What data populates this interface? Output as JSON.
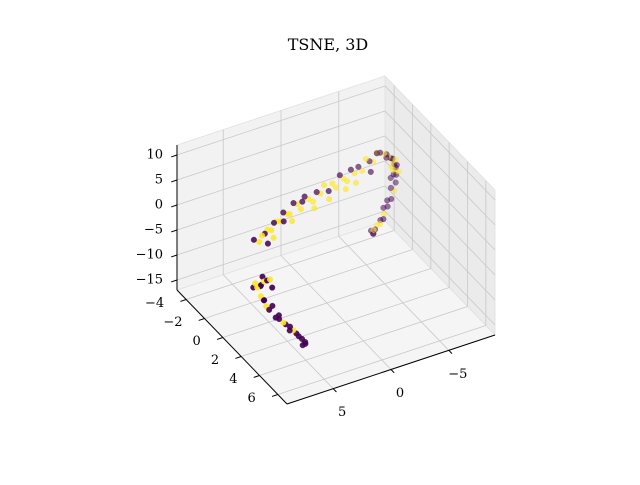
{
  "chart_data": {
    "type": "scatter",
    "projection": "3d",
    "title": "TSNE, 3D",
    "xlabel": "",
    "ylabel": "",
    "zlabel": "",
    "x_ticks": [
      5,
      0,
      -5
    ],
    "y_ticks": [
      -4,
      -2,
      0,
      2,
      4,
      6
    ],
    "z_ticks": [
      10,
      5,
      0,
      -5,
      -10,
      -15
    ],
    "x_tick_labels": [
      "5",
      "0",
      "−5"
    ],
    "y_tick_labels": [
      "−4",
      "−2",
      "0",
      "2",
      "4",
      "6"
    ],
    "z_tick_labels": [
      "10",
      "5",
      "0",
      "−5",
      "−10",
      "−15"
    ],
    "xlim": [
      -9,
      9
    ],
    "ylim": [
      -5,
      7
    ],
    "zlim": [
      -17,
      12
    ],
    "grid": true,
    "colormap": "viridis",
    "classes": [
      {
        "label": 0,
        "color": "#440154"
      },
      {
        "label": 1,
        "color": "#fde725"
      }
    ],
    "points": [
      {
        "x": 8.6,
        "y": 4.0,
        "z": 1.5,
        "c": 1
      },
      {
        "x": 8.7,
        "y": 3.8,
        "z": 0.5,
        "c": 0
      },
      {
        "x": 8.8,
        "y": 3.5,
        "z": -0.5,
        "c": 1
      },
      {
        "x": 8.9,
        "y": 3.2,
        "z": -1.0,
        "c": 0
      },
      {
        "x": 8.5,
        "y": 4.2,
        "z": 2.0,
        "c": 0
      },
      {
        "x": 8.4,
        "y": 4.4,
        "z": 2.5,
        "c": 1
      },
      {
        "x": 8.7,
        "y": 4.1,
        "z": -2.0,
        "c": 0
      },
      {
        "x": 8.8,
        "y": 3.9,
        "z": -1.5,
        "c": 1
      },
      {
        "x": 8.6,
        "y": 3.6,
        "z": -0.2,
        "c": 0
      },
      {
        "x": 8.3,
        "y": 4.5,
        "z": 1.0,
        "c": 0
      },
      {
        "x": 8.9,
        "y": 3.4,
        "z": 0.2,
        "c": 1
      },
      {
        "x": 8.5,
        "y": 3.7,
        "z": 1.8,
        "c": 0
      },
      {
        "x": 8.2,
        "y": 3.5,
        "z": -3.5,
        "c": 0
      },
      {
        "x": 8.0,
        "y": 3.8,
        "z": -5.0,
        "c": 0
      },
      {
        "x": 7.6,
        "y": 4.0,
        "z": -6.5,
        "c": 0
      },
      {
        "x": 7.1,
        "y": 4.2,
        "z": -7.5,
        "c": 1
      },
      {
        "x": 6.6,
        "y": 4.3,
        "z": -8.5,
        "c": 0
      },
      {
        "x": 6.2,
        "y": 4.5,
        "z": -9.8,
        "c": 0
      },
      {
        "x": 5.8,
        "y": 4.6,
        "z": -11.0,
        "c": 0
      },
      {
        "x": 5.5,
        "y": 4.6,
        "z": -12.2,
        "c": 0
      },
      {
        "x": 7.8,
        "y": 3.9,
        "z": -4.2,
        "c": 0
      },
      {
        "x": 7.4,
        "y": 4.1,
        "z": -6.0,
        "c": 0
      },
      {
        "x": 6.9,
        "y": 4.2,
        "z": -8.0,
        "c": 0
      },
      {
        "x": 6.4,
        "y": 4.4,
        "z": -9.2,
        "c": 1
      },
      {
        "x": 6.0,
        "y": 4.5,
        "z": -10.5,
        "c": 0
      },
      {
        "x": 5.6,
        "y": 4.7,
        "z": -11.6,
        "c": 0
      },
      {
        "x": 8.1,
        "y": 3.6,
        "z": -4.6,
        "c": 1
      },
      {
        "x": 7.3,
        "y": 4.0,
        "z": -7.0,
        "c": 0
      },
      {
        "x": 6.7,
        "y": 4.4,
        "z": -9.0,
        "c": 0
      },
      {
        "x": 5.9,
        "y": 4.8,
        "z": -11.8,
        "c": 0
      },
      {
        "x": 7.9,
        "y": 2.0,
        "z": 5.5,
        "c": 0
      },
      {
        "x": 7.6,
        "y": 2.2,
        "z": 5.2,
        "c": 1
      },
      {
        "x": 7.2,
        "y": 2.0,
        "z": 5.8,
        "c": 1
      },
      {
        "x": 6.8,
        "y": 1.8,
        "z": 5.5,
        "c": 0
      },
      {
        "x": 6.4,
        "y": 1.6,
        "z": 5.6,
        "c": 1
      },
      {
        "x": 6.0,
        "y": 1.5,
        "z": 5.0,
        "c": 1
      },
      {
        "x": 5.6,
        "y": 1.3,
        "z": 5.8,
        "c": 0
      },
      {
        "x": 5.2,
        "y": 1.1,
        "z": 5.4,
        "c": 1
      },
      {
        "x": 4.8,
        "y": 1.0,
        "z": 4.9,
        "c": 1
      },
      {
        "x": 4.4,
        "y": 0.8,
        "z": 6.0,
        "c": 0
      },
      {
        "x": 4.0,
        "y": 0.7,
        "z": 5.2,
        "c": 1
      },
      {
        "x": 3.6,
        "y": 0.5,
        "z": 4.5,
        "c": 1
      },
      {
        "x": 3.2,
        "y": 0.4,
        "z": 6.2,
        "c": 0
      },
      {
        "x": 2.8,
        "y": 0.3,
        "z": 5.5,
        "c": 1
      },
      {
        "x": 2.4,
        "y": 0.2,
        "z": 4.0,
        "c": 1
      },
      {
        "x": 2.0,
        "y": 0.1,
        "z": 6.0,
        "c": 0
      },
      {
        "x": 1.6,
        "y": 0.0,
        "z": 5.0,
        "c": 1
      },
      {
        "x": 1.2,
        "y": 0.0,
        "z": 4.2,
        "c": 1
      },
      {
        "x": 0.8,
        "y": -0.1,
        "z": 5.6,
        "c": 0
      },
      {
        "x": 0.4,
        "y": -0.2,
        "z": 4.8,
        "c": 1
      },
      {
        "x": 0.0,
        "y": -0.3,
        "z": 6.0,
        "c": 1
      },
      {
        "x": -0.4,
        "y": -0.3,
        "z": 4.5,
        "c": 0
      },
      {
        "x": -0.8,
        "y": -0.4,
        "z": 5.5,
        "c": 1
      },
      {
        "x": -1.2,
        "y": -0.5,
        "z": 4.2,
        "c": 1
      },
      {
        "x": -1.6,
        "y": -0.6,
        "z": 6.2,
        "c": 0
      },
      {
        "x": -2.0,
        "y": -0.7,
        "z": 5.0,
        "c": 1
      },
      {
        "x": -2.4,
        "y": -0.8,
        "z": 4.0,
        "c": 1
      },
      {
        "x": -2.8,
        "y": -0.9,
        "z": 5.8,
        "c": 0
      },
      {
        "x": -3.2,
        "y": -1.0,
        "z": 4.6,
        "c": 1
      },
      {
        "x": -3.6,
        "y": -1.1,
        "z": 5.4,
        "c": 0
      },
      {
        "x": -4.0,
        "y": -1.2,
        "z": 4.1,
        "c": 1
      },
      {
        "x": -4.4,
        "y": -1.3,
        "z": 6.0,
        "c": 1
      },
      {
        "x": -4.8,
        "y": -1.4,
        "z": 5.0,
        "c": 0
      },
      {
        "x": -5.2,
        "y": -1.5,
        "z": 4.4,
        "c": 1
      },
      {
        "x": -5.6,
        "y": -1.6,
        "z": 5.6,
        "c": 0
      },
      {
        "x": 7.0,
        "y": 2.4,
        "z": 4.8,
        "c": 0
      },
      {
        "x": 6.2,
        "y": 2.0,
        "z": 4.6,
        "c": 1
      },
      {
        "x": 5.0,
        "y": 1.6,
        "z": 6.2,
        "c": 0
      },
      {
        "x": 3.8,
        "y": 1.0,
        "z": 4.2,
        "c": 1
      },
      {
        "x": 2.6,
        "y": 0.6,
        "z": 6.4,
        "c": 0
      },
      {
        "x": 1.4,
        "y": 0.4,
        "z": 3.8,
        "c": 1
      },
      {
        "x": -0.2,
        "y": 0.0,
        "z": 3.6,
        "c": 1
      },
      {
        "x": -1.8,
        "y": -0.2,
        "z": 4.0,
        "c": 1
      },
      {
        "x": -3.0,
        "y": -0.6,
        "z": 3.6,
        "c": 1
      },
      {
        "x": -4.6,
        "y": -1.0,
        "z": 3.8,
        "c": 0
      },
      {
        "x": -5.8,
        "y": -1.9,
        "z": 5.0,
        "c": 1
      },
      {
        "x": -6.2,
        "y": -2.0,
        "z": 4.5,
        "c": 0
      },
      {
        "x": -6.6,
        "y": -2.1,
        "z": 3.8,
        "c": 1
      },
      {
        "x": -7.0,
        "y": -2.3,
        "z": 3.0,
        "c": 0
      },
      {
        "x": -7.3,
        "y": -2.5,
        "z": 2.0,
        "c": 1
      },
      {
        "x": -7.6,
        "y": -2.6,
        "z": 1.2,
        "c": 0
      },
      {
        "x": -7.9,
        "y": -2.8,
        "z": 0.5,
        "c": 0
      },
      {
        "x": -8.1,
        "y": -3.0,
        "z": -0.5,
        "c": 1
      },
      {
        "x": -8.3,
        "y": -3.1,
        "z": -1.5,
        "c": 0
      },
      {
        "x": -8.5,
        "y": -3.2,
        "z": -2.5,
        "c": 0
      },
      {
        "x": -8.6,
        "y": -3.3,
        "z": -3.5,
        "c": 1
      },
      {
        "x": -8.7,
        "y": -3.4,
        "z": -4.5,
        "c": 0
      },
      {
        "x": -8.5,
        "y": -3.2,
        "z": -5.5,
        "c": 0
      },
      {
        "x": -8.2,
        "y": -3.0,
        "z": -6.5,
        "c": 1
      },
      {
        "x": -7.8,
        "y": -2.8,
        "z": -7.5,
        "c": 0
      },
      {
        "x": -7.4,
        "y": -2.7,
        "z": -8.5,
        "c": 0
      },
      {
        "x": -7.0,
        "y": -2.6,
        "z": -9.5,
        "c": 1
      },
      {
        "x": -6.7,
        "y": -2.6,
        "z": -10.5,
        "c": 0
      },
      {
        "x": -6.5,
        "y": -2.7,
        "z": -11.5,
        "c": 1
      },
      {
        "x": -6.4,
        "y": -2.8,
        "z": -12.5,
        "c": 0
      },
      {
        "x": -6.3,
        "y": -2.9,
        "z": -13.5,
        "c": 0
      },
      {
        "x": -6.9,
        "y": -2.2,
        "z": 2.6,
        "c": 0
      },
      {
        "x": -7.5,
        "y": -2.4,
        "z": 0.0,
        "c": 1
      },
      {
        "x": -8.0,
        "y": -2.9,
        "z": -2.0,
        "c": 1
      },
      {
        "x": -8.4,
        "y": -3.3,
        "z": -4.0,
        "c": 0
      },
      {
        "x": -8.0,
        "y": -3.1,
        "z": -6.0,
        "c": 0
      },
      {
        "x": -7.2,
        "y": -2.9,
        "z": -9.0,
        "c": 0
      },
      {
        "x": -6.6,
        "y": -2.5,
        "z": -11.0,
        "c": 1
      },
      {
        "x": -6.2,
        "y": -3.0,
        "z": -13.0,
        "c": 0
      },
      {
        "x": -7.7,
        "y": -2.2,
        "z": 1.6,
        "c": 1
      },
      {
        "x": -8.2,
        "y": -2.7,
        "z": -0.8,
        "c": 0
      },
      {
        "x": -8.6,
        "y": -3.0,
        "z": -3.0,
        "c": 1
      },
      {
        "x": -8.3,
        "y": -3.5,
        "z": -5.0,
        "c": 0
      },
      {
        "x": -7.6,
        "y": -3.0,
        "z": -8.0,
        "c": 0
      },
      {
        "x": -6.8,
        "y": -2.4,
        "z": -10.0,
        "c": 0
      },
      {
        "x": -6.1,
        "y": -2.6,
        "z": -12.0,
        "c": 1
      },
      {
        "x": -6.5,
        "y": -3.1,
        "z": -14.0,
        "c": 0
      }
    ]
  }
}
